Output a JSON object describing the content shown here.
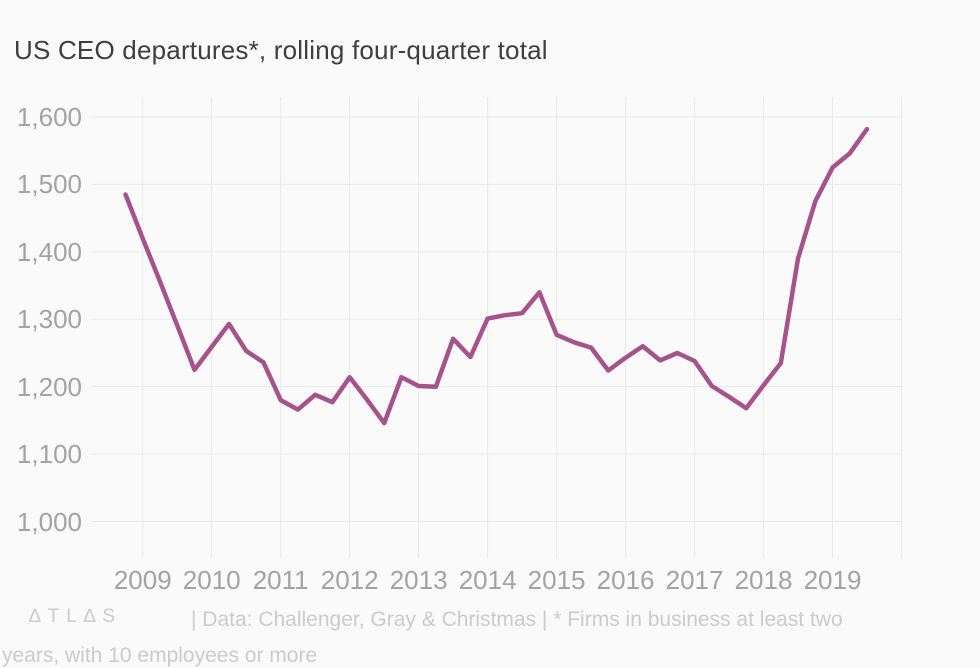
{
  "title": "US CEO departures*, rolling four-quarter total",
  "footer": {
    "logo": "∆TL∆S",
    "line1": "| Data: Challenger, Gray & Christmas | * Firms in business at least two",
    "line2": "years, with 10 employees or more"
  },
  "colors": {
    "line": "#a6528b",
    "background": "#fafafa",
    "gridline": "#e9e9e9",
    "title_text": "#3e3e3e",
    "tick_text": "#a3a3a3",
    "footer_text": "#cbcbcb"
  },
  "chart_data": {
    "type": "line",
    "title": "US CEO departures*, rolling four-quarter total",
    "xlabel": "",
    "ylabel": "",
    "ylim": [
      1000,
      1600
    ],
    "grid": true,
    "legend": "none",
    "y_tick_labels": [
      "1,000",
      "1,100",
      "1,200",
      "1,300",
      "1,400",
      "1,500",
      "1,600"
    ],
    "x_tick_labels": [
      "2009",
      "2010",
      "2011",
      "2012",
      "2013",
      "2014",
      "2015",
      "2016",
      "2017",
      "2018",
      "2019"
    ],
    "series": [
      {
        "name": "US CEO departures, rolling four-quarter total",
        "x_start": "2008 Q4",
        "x_step": "quarter",
        "values": [
          1485,
          1420,
          1356,
          1291,
          1225,
          1259,
          1293,
          1253,
          1236,
          1180,
          1166,
          1188,
          1177,
          1214,
          1181,
          1146,
          1214,
          1201,
          1200,
          1271,
          1244,
          1301,
          1306,
          1309,
          1340,
          1277,
          1266,
          1258,
          1224,
          1243,
          1260,
          1239,
          1250,
          1238,
          1201,
          1185,
          1168,
          1202,
          1235,
          1390,
          1475,
          1525,
          1546,
          1582
        ]
      }
    ]
  }
}
